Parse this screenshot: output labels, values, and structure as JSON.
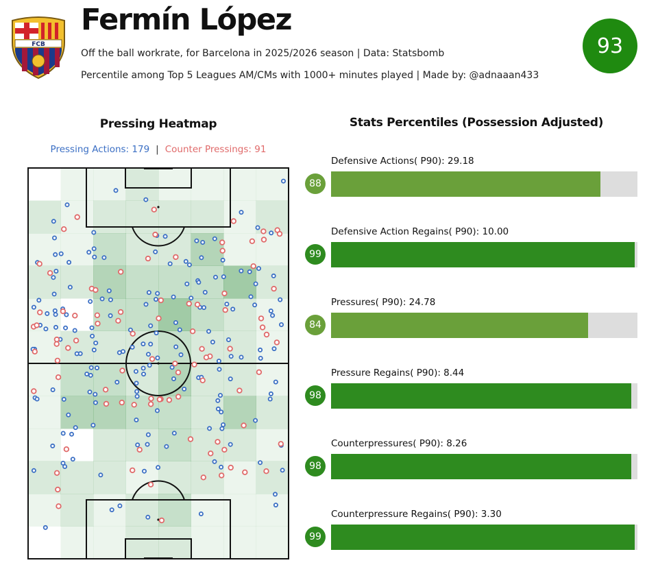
{
  "header": {
    "crest_label": "FCB",
    "player_name": "Fermín López",
    "subtitle_1": "Off the ball workrate, for Barcelona in 2025/2026 season | Data: Statsbomb",
    "subtitle_2": "Percentile among Top 5 Leagues AM/CMs with 1000+ minutes played | Made by: @adnaaan433",
    "overall_score": "93",
    "overall_color": "#1f8a10"
  },
  "heatmap": {
    "title": "Pressing Heatmap",
    "pressing_label": "Pressing Actions: 179",
    "counter_label": "Counter Pressings: 91",
    "separator": "|",
    "pressing_color": "#3b6fc4",
    "counter_color": "#e06a6a"
  },
  "bars": {
    "title": "Stats Percentiles (Possession Adjusted)"
  },
  "chart_data": [
    {
      "type": "heatmap",
      "title": "Pressing Heatmap",
      "series": [
        {
          "name": "Pressing Actions",
          "count": 179
        },
        {
          "name": "Counter Pressings",
          "count": 91
        }
      ]
    },
    {
      "type": "bar",
      "title": "Stats Percentiles (Possession Adjusted)",
      "ylim": [
        0,
        100
      ],
      "items": [
        {
          "label": "Defensive Actions( P90): 29.18",
          "percentile": 88,
          "percentile_text": "88",
          "color": "#6aa03a"
        },
        {
          "label": "Defensive Action Regains( P90): 10.00",
          "percentile": 99,
          "percentile_text": "99",
          "color": "#2e8b1f"
        },
        {
          "label": "Pressures( P90): 24.78",
          "percentile": 84,
          "percentile_text": "84",
          "color": "#6aa03a"
        },
        {
          "label": "Pressure Regains( P90): 8.44",
          "percentile": 98,
          "percentile_text": "98",
          "color": "#2e8b1f"
        },
        {
          "label": "Counterpressures( P90): 8.26",
          "percentile": 98,
          "percentile_text": "98",
          "color": "#2e8b1f"
        },
        {
          "label": "Counterpressure Regains( P90): 3.30",
          "percentile": 99,
          "percentile_text": "99",
          "color": "#2e8b1f"
        }
      ]
    }
  ]
}
